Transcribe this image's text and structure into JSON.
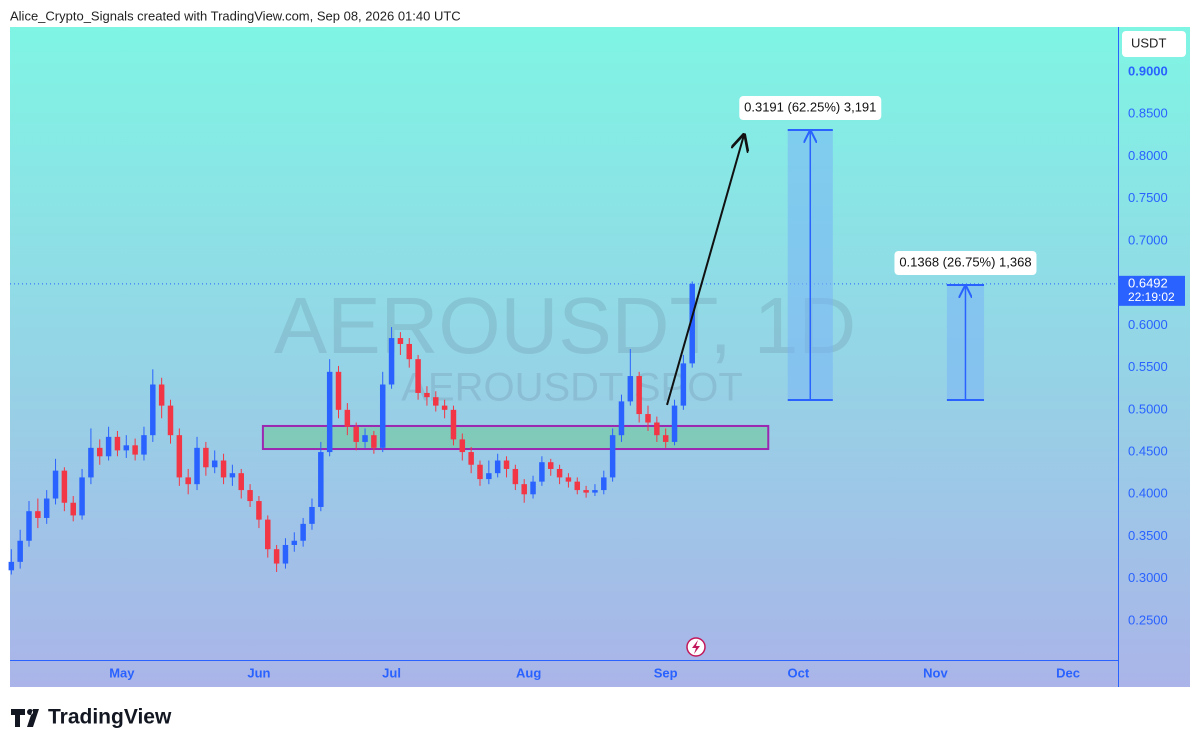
{
  "header": "Alice_Crypto_Signals created with TradingView.com, Sep 08, 2026 01:40 UTC",
  "chart_data": {
    "type": "candlestick",
    "watermark": "AEROUSDT, 1D",
    "watermark_sub": "AEROUSDT SPOT",
    "currency": "USDT",
    "up_color": "#2962ff",
    "down_color": "#f23645",
    "x": [
      5,
      7,
      9,
      11,
      13,
      15,
      17,
      19,
      21,
      23,
      25,
      27,
      29,
      31,
      33,
      35,
      37,
      39,
      41,
      43,
      45,
      47,
      49,
      51,
      53,
      55,
      57,
      59,
      61,
      63,
      65,
      67,
      69,
      71,
      73,
      75,
      77,
      79,
      81,
      83,
      85,
      87,
      89,
      91,
      93,
      95,
      97,
      99,
      101,
      103,
      105,
      107,
      109,
      111,
      113,
      115,
      117,
      119,
      121,
      123,
      125,
      127,
      129,
      131,
      133,
      135,
      137,
      139,
      141,
      143,
      145,
      147,
      149,
      151,
      153,
      155,
      157,
      159
    ],
    "open": [
      0.31,
      0.32,
      0.345,
      0.38,
      0.372,
      0.395,
      0.428,
      0.39,
      0.375,
      0.42,
      0.455,
      0.445,
      0.468,
      0.452,
      0.458,
      0.447,
      0.47,
      0.53,
      0.505,
      0.47,
      0.42,
      0.412,
      0.455,
      0.432,
      0.44,
      0.42,
      0.425,
      0.405,
      0.392,
      0.37,
      0.335,
      0.318,
      0.34,
      0.345,
      0.365,
      0.385,
      0.45,
      0.545,
      0.5,
      0.48,
      0.462,
      0.47,
      0.455,
      0.53,
      0.585,
      0.578,
      0.56,
      0.52,
      0.515,
      0.505,
      0.5,
      0.465,
      0.45,
      0.435,
      0.418,
      0.425,
      0.44,
      0.43,
      0.412,
      0.4,
      0.415,
      0.438,
      0.43,
      0.42,
      0.415,
      0.405,
      0.402,
      0.405,
      0.42,
      0.47,
      0.51,
      0.54,
      0.495,
      0.485,
      0.47,
      0.462,
      0.505,
      0.555
    ],
    "high": [
      0.335,
      0.358,
      0.392,
      0.395,
      0.405,
      0.442,
      0.432,
      0.398,
      0.43,
      0.478,
      0.465,
      0.48,
      0.475,
      0.47,
      0.466,
      0.48,
      0.548,
      0.538,
      0.512,
      0.478,
      0.43,
      0.468,
      0.462,
      0.452,
      0.448,
      0.435,
      0.43,
      0.412,
      0.398,
      0.375,
      0.34,
      0.348,
      0.355,
      0.372,
      0.395,
      0.462,
      0.56,
      0.552,
      0.508,
      0.485,
      0.478,
      0.475,
      0.545,
      0.598,
      0.592,
      0.585,
      0.565,
      0.528,
      0.522,
      0.512,
      0.505,
      0.472,
      0.456,
      0.44,
      0.44,
      0.448,
      0.445,
      0.435,
      0.418,
      0.422,
      0.445,
      0.442,
      0.435,
      0.425,
      0.42,
      0.41,
      0.412,
      0.428,
      0.478,
      0.518,
      0.572,
      0.545,
      0.505,
      0.492,
      0.478,
      0.512,
      0.565,
      0.652
    ],
    "low": [
      0.305,
      0.312,
      0.338,
      0.36,
      0.365,
      0.388,
      0.38,
      0.368,
      0.37,
      0.412,
      0.435,
      0.44,
      0.445,
      0.443,
      0.44,
      0.44,
      0.462,
      0.49,
      0.46,
      0.41,
      0.4,
      0.405,
      0.422,
      0.425,
      0.412,
      0.41,
      0.395,
      0.385,
      0.36,
      0.325,
      0.308,
      0.312,
      0.332,
      0.338,
      0.358,
      0.38,
      0.445,
      0.49,
      0.47,
      0.452,
      0.455,
      0.448,
      0.45,
      0.525,
      0.565,
      0.55,
      0.512,
      0.505,
      0.498,
      0.49,
      0.458,
      0.44,
      0.425,
      0.41,
      0.412,
      0.42,
      0.42,
      0.405,
      0.39,
      0.395,
      0.41,
      0.422,
      0.412,
      0.408,
      0.4,
      0.396,
      0.398,
      0.4,
      0.415,
      0.462,
      0.505,
      0.485,
      0.475,
      0.462,
      0.455,
      0.458,
      0.5,
      0.55
    ],
    "close": [
      0.32,
      0.345,
      0.38,
      0.372,
      0.395,
      0.428,
      0.39,
      0.375,
      0.42,
      0.455,
      0.445,
      0.468,
      0.452,
      0.458,
      0.447,
      0.47,
      0.53,
      0.505,
      0.47,
      0.42,
      0.412,
      0.455,
      0.432,
      0.44,
      0.42,
      0.425,
      0.405,
      0.392,
      0.37,
      0.335,
      0.318,
      0.34,
      0.345,
      0.365,
      0.385,
      0.45,
      0.545,
      0.5,
      0.48,
      0.462,
      0.47,
      0.455,
      0.53,
      0.585,
      0.578,
      0.56,
      0.52,
      0.515,
      0.505,
      0.5,
      0.465,
      0.45,
      0.435,
      0.418,
      0.425,
      0.44,
      0.43,
      0.412,
      0.4,
      0.415,
      0.438,
      0.43,
      0.42,
      0.415,
      0.405,
      0.402,
      0.405,
      0.42,
      0.47,
      0.51,
      0.54,
      0.495,
      0.485,
      0.47,
      0.462,
      0.505,
      0.555,
      0.6492
    ],
    "xlim": [
      4.7,
      255.3
    ],
    "xticks": [
      {
        "value": 30,
        "label": "May"
      },
      {
        "value": 61,
        "label": "Jun"
      },
      {
        "value": 91,
        "label": "Jul"
      },
      {
        "value": 122,
        "label": "Aug"
      },
      {
        "value": 153,
        "label": "Sep"
      },
      {
        "value": 183,
        "label": "Oct"
      },
      {
        "value": 214,
        "label": "Nov"
      },
      {
        "value": 244,
        "label": "Dec"
      }
    ],
    "ylim": [
      0.2038,
      0.9533
    ],
    "yticks": [
      {
        "value": 0.25,
        "label": "0.2500"
      },
      {
        "value": 0.3,
        "label": "0.3000"
      },
      {
        "value": 0.35,
        "label": "0.3500"
      },
      {
        "value": 0.4,
        "label": "0.4000"
      },
      {
        "value": 0.45,
        "label": "0.4500"
      },
      {
        "value": 0.5,
        "label": "0.5000"
      },
      {
        "value": 0.55,
        "label": "0.5500"
      },
      {
        "value": 0.6,
        "label": "0.6000"
      },
      {
        "value": 0.65,
        "label": "0.6500"
      },
      {
        "value": 0.7,
        "label": "0.7000"
      },
      {
        "value": 0.75,
        "label": "0.7500"
      },
      {
        "value": 0.8,
        "label": "0.8000"
      },
      {
        "value": 0.85,
        "label": "0.8500"
      },
      {
        "value": 0.9,
        "label": "0.9000"
      }
    ],
    "last_price": 0.6492,
    "countdown": "22:19:02",
    "zone": {
      "x": [
        61.9,
        176.2
      ],
      "y": [
        0.4536,
        0.4809
      ]
    },
    "arrow": {
      "x": [
        153.3,
        170.7
      ],
      "y": [
        0.5058,
        0.8254
      ]
    },
    "projections": [
      {
        "x": [
          180.6,
          190.8
        ],
        "y": [
          0.5117,
          0.8313
        ],
        "label": "0.3191 (62.25%) 3,191"
      },
      {
        "x": [
          216.6,
          225.0
        ],
        "y": [
          0.5117,
          0.6478
        ],
        "label": "0.1368 (26.75%) 1,368"
      }
    ]
  },
  "footer": "TradingView"
}
